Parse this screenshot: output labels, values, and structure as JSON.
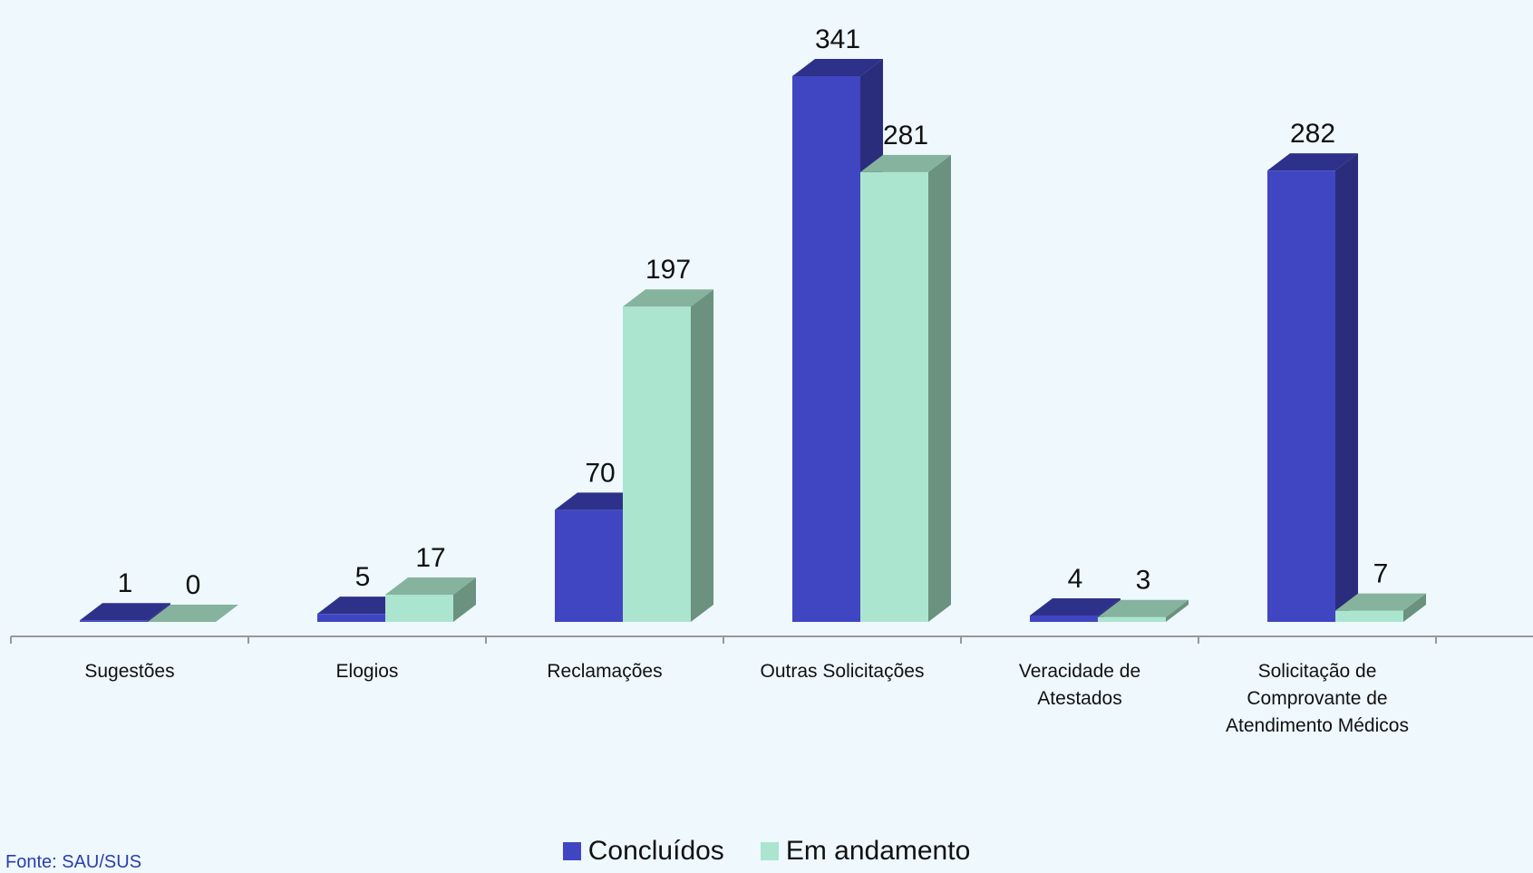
{
  "chart_data": {
    "type": "bar",
    "categories": [
      [
        "Sugestões"
      ],
      [
        "Elogios"
      ],
      [
        "Reclamações"
      ],
      [
        "Outras Solicitações"
      ],
      [
        "Veracidade de",
        "Atestados"
      ],
      [
        "Solicitação de",
        "Comprovante de",
        "Atendimento Médicos"
      ]
    ],
    "series": [
      {
        "name": "Concluídos",
        "values": [
          1,
          5,
          70,
          341,
          4,
          282
        ],
        "color": "#4046c2",
        "top_color": "#2d318a",
        "side_color": "#2a2d7c"
      },
      {
        "name": "Em andamento",
        "values": [
          0,
          17,
          197,
          281,
          3,
          7
        ],
        "color": "#abe5cf",
        "top_color": "#86b39e",
        "side_color": "#6a927f"
      }
    ],
    "ylim": [
      0,
      341
    ],
    "legend_position": "bottom-center"
  },
  "source_label": "Fonte: SAU/SUS"
}
